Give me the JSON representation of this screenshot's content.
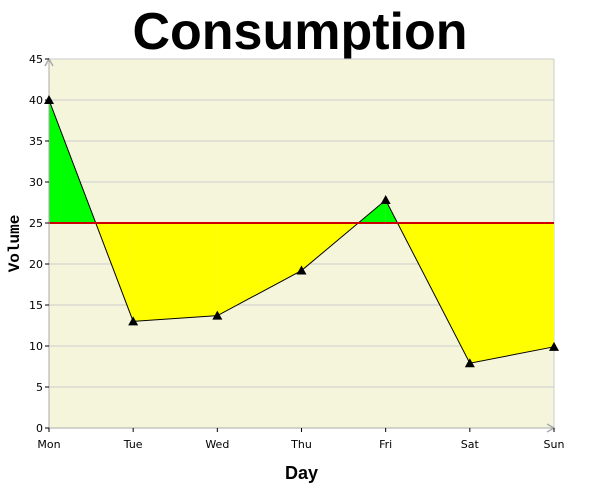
{
  "chart_data": {
    "type": "area",
    "title": "Consumption",
    "xlabel": "Day",
    "ylabel": "Volume",
    "categories": [
      "Mon",
      "Tue",
      "Wed",
      "Thu",
      "Fri",
      "Sat",
      "Sun"
    ],
    "values": [
      40,
      13,
      13.7,
      19.2,
      27.8,
      7.9,
      9.9
    ],
    "threshold": 25,
    "ylim": [
      0,
      45
    ],
    "yticks": [
      0,
      5,
      10,
      15,
      20,
      25,
      30,
      35,
      40,
      45
    ],
    "grid": true,
    "legend": "none",
    "colors": {
      "plot_background": "#f5f5dc",
      "above_threshold": "#00ff00",
      "below_threshold": "#ffff00",
      "threshold_line": "#cc0000",
      "gridline": "#cccccc",
      "series_line": "#000000",
      "axis": "#aaaaaa"
    }
  }
}
